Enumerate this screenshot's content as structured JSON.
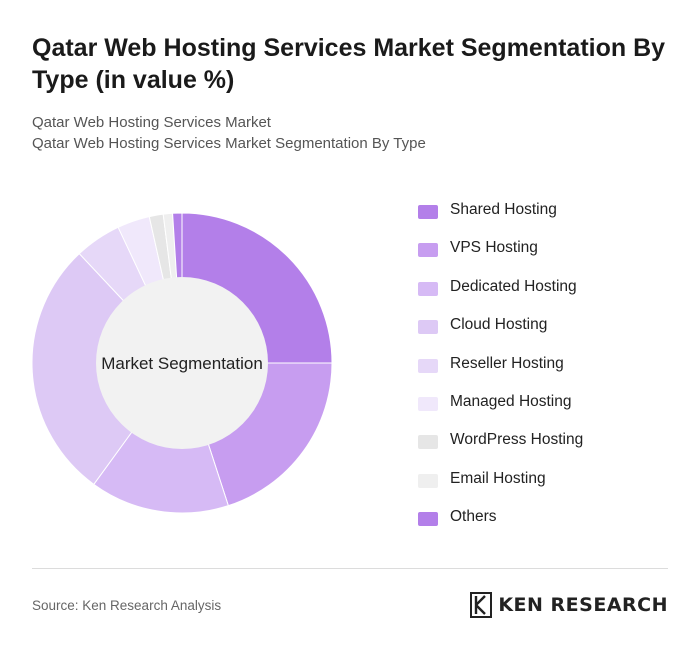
{
  "header": {
    "title": "Qatar Web Hosting Services Market Segmentation By Type (in value %)",
    "subtitle_line1": "Qatar Web Hosting Services Market",
    "subtitle_line2": "Qatar Web Hosting Services Market Segmentation By Type"
  },
  "chart_data": {
    "type": "pie",
    "center_label": "Market Segmentation",
    "series": [
      {
        "name": "Shared Hosting",
        "value": 25,
        "color": "#b37fe9"
      },
      {
        "name": "VPS Hosting",
        "value": 20,
        "color": "#c79df0"
      },
      {
        "name": "Dedicated Hosting",
        "value": 15,
        "color": "#d6baf5"
      },
      {
        "name": "Cloud Hosting",
        "value": 28,
        "color": "#ddc9f5"
      },
      {
        "name": "Reseller Hosting",
        "value": 5,
        "color": "#e6d8f8"
      },
      {
        "name": "Managed Hosting",
        "value": 3.5,
        "color": "#f0e8fb"
      },
      {
        "name": "WordPress Hosting",
        "value": 1.5,
        "color": "#e6e6e6"
      },
      {
        "name": "Email Hosting",
        "value": 1,
        "color": "#efefef"
      },
      {
        "name": "Others",
        "value": 1,
        "color": "#b37fe9"
      }
    ],
    "legend_position": "right"
  },
  "footer": {
    "source": "Source: Ken Research Analysis",
    "brand": "KEN RESEARCH"
  }
}
